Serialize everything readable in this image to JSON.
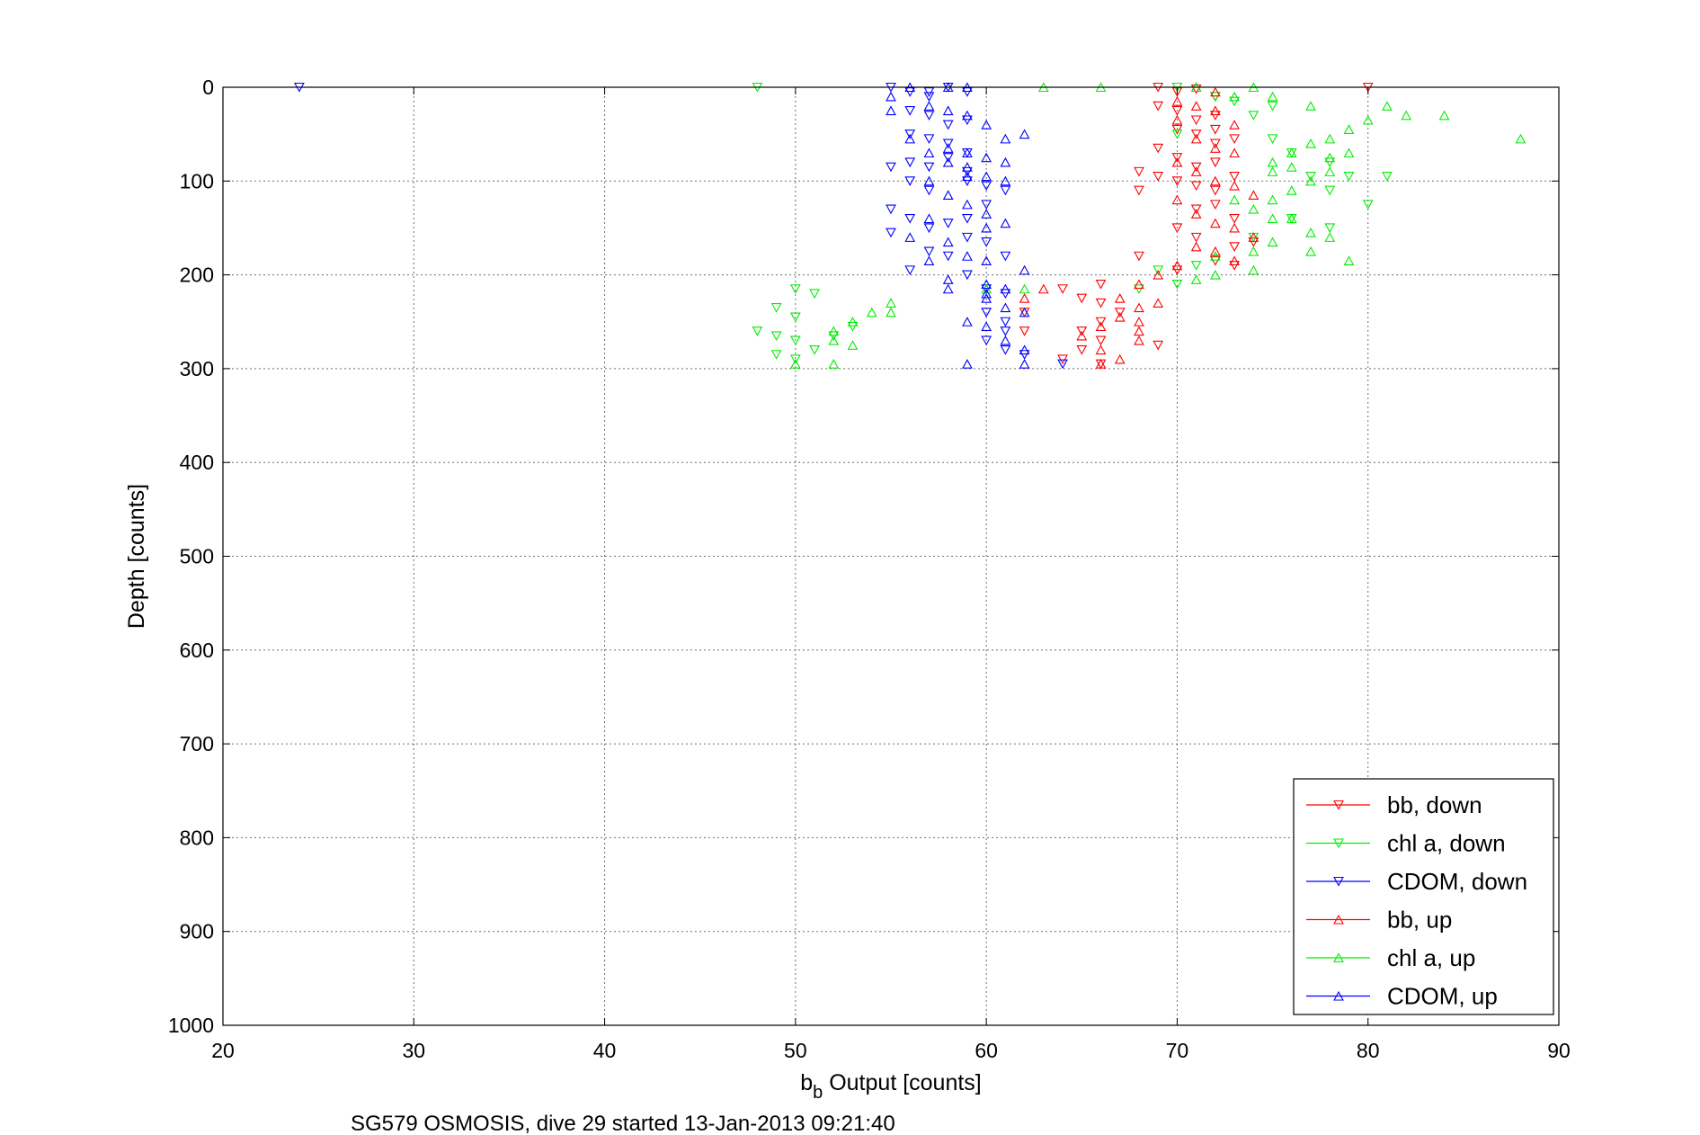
{
  "chart_data": {
    "type": "scatter",
    "xlabel_main": "b",
    "xlabel_sub": "b",
    "xlabel_rest": " Output [counts]",
    "ylabel": "Depth [counts]",
    "caption": "SG579 OSMOSIS, dive 29 started 13-Jan-2013 09:21:40",
    "xlim": [
      20,
      90
    ],
    "ylim": [
      0,
      1000
    ],
    "y_reversed": true,
    "grid": true,
    "legend_position": "bottom-right",
    "x_ticks": [
      "20",
      "30",
      "40",
      "50",
      "60",
      "70",
      "80",
      "90"
    ],
    "y_ticks": [
      "0",
      "100",
      "200",
      "300",
      "400",
      "500",
      "600",
      "700",
      "800",
      "900",
      "1000"
    ],
    "series": [
      {
        "name": "bb, down",
        "color": "#ff0000",
        "marker": "triangle-down",
        "points": [
          [
            69,
            0
          ],
          [
            70,
            5
          ],
          [
            71,
            2
          ],
          [
            72,
            10
          ],
          [
            69,
            20
          ],
          [
            70,
            25
          ],
          [
            71,
            35
          ],
          [
            72,
            30
          ],
          [
            70,
            45
          ],
          [
            71,
            50
          ],
          [
            72,
            60
          ],
          [
            73,
            55
          ],
          [
            69,
            65
          ],
          [
            70,
            75
          ],
          [
            71,
            85
          ],
          [
            72,
            80
          ],
          [
            68,
            90
          ],
          [
            69,
            95
          ],
          [
            70,
            100
          ],
          [
            71,
            105
          ],
          [
            72,
            110
          ],
          [
            73,
            95
          ],
          [
            68,
            110
          ],
          [
            71,
            130
          ],
          [
            72,
            125
          ],
          [
            73,
            140
          ],
          [
            70,
            150
          ],
          [
            71,
            160
          ],
          [
            73,
            170
          ],
          [
            74,
            165
          ],
          [
            68,
            180
          ],
          [
            70,
            195
          ],
          [
            72,
            185
          ],
          [
            73,
            190
          ],
          [
            66,
            210
          ],
          [
            64,
            215
          ],
          [
            65,
            225
          ],
          [
            66,
            230
          ],
          [
            67,
            240
          ],
          [
            66,
            250
          ],
          [
            65,
            260
          ],
          [
            66,
            270
          ],
          [
            65,
            280
          ],
          [
            64,
            290
          ],
          [
            66,
            295
          ],
          [
            62,
            240
          ],
          [
            62,
            260
          ],
          [
            69,
            275
          ],
          [
            80,
            0
          ],
          [
            72,
            45
          ]
        ]
      },
      {
        "name": "chl a, down",
        "color": "#00ee00",
        "marker": "triangle-down",
        "points": [
          [
            48,
            0
          ],
          [
            70,
            0
          ],
          [
            72,
            10
          ],
          [
            73,
            15
          ],
          [
            75,
            20
          ],
          [
            70,
            50
          ],
          [
            74,
            30
          ],
          [
            75,
            55
          ],
          [
            76,
            70
          ],
          [
            78,
            80
          ],
          [
            79,
            95
          ],
          [
            81,
            95
          ],
          [
            80,
            125
          ],
          [
            78,
            150
          ],
          [
            76,
            140
          ],
          [
            74,
            160
          ],
          [
            69,
            195
          ],
          [
            68,
            215
          ],
          [
            71,
            190
          ],
          [
            70,
            210
          ],
          [
            50,
            215
          ],
          [
            51,
            220
          ],
          [
            49,
            235
          ],
          [
            50,
            245
          ],
          [
            48,
            260
          ],
          [
            49,
            265
          ],
          [
            50,
            270
          ],
          [
            49,
            285
          ],
          [
            50,
            290
          ],
          [
            51,
            280
          ],
          [
            52,
            265
          ],
          [
            53,
            255
          ],
          [
            78,
            110
          ],
          [
            77,
            95
          ]
        ]
      },
      {
        "name": "CDOM, down",
        "color": "#0000ff",
        "marker": "triangle-down",
        "points": [
          [
            24,
            0
          ],
          [
            55,
            0
          ],
          [
            56,
            5
          ],
          [
            57,
            10
          ],
          [
            58,
            0
          ],
          [
            59,
            5
          ],
          [
            56,
            25
          ],
          [
            57,
            30
          ],
          [
            58,
            40
          ],
          [
            59,
            35
          ],
          [
            56,
            50
          ],
          [
            57,
            55
          ],
          [
            58,
            60
          ],
          [
            59,
            70
          ],
          [
            56,
            80
          ],
          [
            57,
            85
          ],
          [
            58,
            75
          ],
          [
            59,
            90
          ],
          [
            55,
            85
          ],
          [
            56,
            100
          ],
          [
            57,
            110
          ],
          [
            59,
            100
          ],
          [
            60,
            105
          ],
          [
            61,
            110
          ],
          [
            55,
            130
          ],
          [
            56,
            140
          ],
          [
            57,
            150
          ],
          [
            58,
            145
          ],
          [
            59,
            160
          ],
          [
            55,
            155
          ],
          [
            57,
            175
          ],
          [
            58,
            180
          ],
          [
            60,
            165
          ],
          [
            61,
            180
          ],
          [
            56,
            195
          ],
          [
            59,
            200
          ],
          [
            60,
            215
          ],
          [
            61,
            220
          ],
          [
            60,
            240
          ],
          [
            61,
            250
          ],
          [
            60,
            270
          ],
          [
            61,
            280
          ],
          [
            62,
            285
          ],
          [
            64,
            295
          ],
          [
            61,
            260
          ],
          [
            59,
            140
          ],
          [
            57,
            5
          ],
          [
            60,
            125
          ]
        ]
      },
      {
        "name": "bb, up",
        "color": "#ff0000",
        "marker": "triangle-up",
        "points": [
          [
            71,
            0
          ],
          [
            72,
            5
          ],
          [
            70,
            15
          ],
          [
            71,
            20
          ],
          [
            72,
            25
          ],
          [
            70,
            35
          ],
          [
            73,
            40
          ],
          [
            71,
            55
          ],
          [
            72,
            65
          ],
          [
            73,
            70
          ],
          [
            70,
            80
          ],
          [
            71,
            90
          ],
          [
            72,
            100
          ],
          [
            73,
            105
          ],
          [
            74,
            115
          ],
          [
            70,
            120
          ],
          [
            71,
            135
          ],
          [
            72,
            145
          ],
          [
            73,
            150
          ],
          [
            74,
            160
          ],
          [
            71,
            170
          ],
          [
            72,
            175
          ],
          [
            73,
            185
          ],
          [
            70,
            190
          ],
          [
            69,
            200
          ],
          [
            68,
            210
          ],
          [
            67,
            225
          ],
          [
            68,
            235
          ],
          [
            67,
            245
          ],
          [
            66,
            255
          ],
          [
            68,
            260
          ],
          [
            68,
            270
          ],
          [
            67,
            290
          ],
          [
            66,
            295
          ],
          [
            65,
            265
          ],
          [
            63,
            215
          ],
          [
            62,
            225
          ],
          [
            69,
            230
          ],
          [
            68,
            250
          ],
          [
            66,
            280
          ]
        ]
      },
      {
        "name": "chl a, up",
        "color": "#00ee00",
        "marker": "triangle-up",
        "points": [
          [
            63,
            0
          ],
          [
            66,
            0
          ],
          [
            71,
            0
          ],
          [
            74,
            0
          ],
          [
            73,
            10
          ],
          [
            75,
            10
          ],
          [
            77,
            20
          ],
          [
            80,
            35
          ],
          [
            81,
            20
          ],
          [
            82,
            30
          ],
          [
            84,
            30
          ],
          [
            88,
            55
          ],
          [
            79,
            45
          ],
          [
            78,
            55
          ],
          [
            77,
            60
          ],
          [
            76,
            70
          ],
          [
            75,
            80
          ],
          [
            78,
            75
          ],
          [
            79,
            70
          ],
          [
            78,
            90
          ],
          [
            77,
            100
          ],
          [
            76,
            110
          ],
          [
            75,
            120
          ],
          [
            74,
            130
          ],
          [
            76,
            140
          ],
          [
            77,
            155
          ],
          [
            75,
            165
          ],
          [
            74,
            175
          ],
          [
            72,
            180
          ],
          [
            77,
            175
          ],
          [
            78,
            160
          ],
          [
            79,
            185
          ],
          [
            72,
            200
          ],
          [
            74,
            195
          ],
          [
            71,
            205
          ],
          [
            55,
            230
          ],
          [
            55,
            240
          ],
          [
            54,
            240
          ],
          [
            53,
            250
          ],
          [
            52,
            260
          ],
          [
            52,
            270
          ],
          [
            53,
            275
          ],
          [
            52,
            295
          ],
          [
            50,
            295
          ],
          [
            60,
            215
          ],
          [
            62,
            215
          ],
          [
            75,
            90
          ],
          [
            76,
            85
          ],
          [
            75,
            140
          ],
          [
            73,
            120
          ]
        ]
      },
      {
        "name": "CDOM, up",
        "color": "#0000ff",
        "marker": "triangle-up",
        "points": [
          [
            56,
            0
          ],
          [
            58,
            0
          ],
          [
            59,
            0
          ],
          [
            55,
            10
          ],
          [
            57,
            20
          ],
          [
            58,
            25
          ],
          [
            59,
            30
          ],
          [
            60,
            40
          ],
          [
            61,
            55
          ],
          [
            62,
            50
          ],
          [
            56,
            55
          ],
          [
            58,
            65
          ],
          [
            59,
            70
          ],
          [
            60,
            75
          ],
          [
            61,
            80
          ],
          [
            57,
            70
          ],
          [
            59,
            85
          ],
          [
            60,
            95
          ],
          [
            61,
            100
          ],
          [
            58,
            115
          ],
          [
            59,
            125
          ],
          [
            60,
            135
          ],
          [
            61,
            145
          ],
          [
            57,
            140
          ],
          [
            56,
            160
          ],
          [
            58,
            165
          ],
          [
            59,
            180
          ],
          [
            60,
            185
          ],
          [
            62,
            195
          ],
          [
            57,
            185
          ],
          [
            58,
            205
          ],
          [
            60,
            210
          ],
          [
            61,
            215
          ],
          [
            60,
            225
          ],
          [
            61,
            235
          ],
          [
            62,
            240
          ],
          [
            60,
            255
          ],
          [
            61,
            270
          ],
          [
            62,
            280
          ],
          [
            62,
            295
          ],
          [
            59,
            250
          ],
          [
            59,
            295
          ],
          [
            58,
            215
          ],
          [
            60,
            220
          ],
          [
            57,
            100
          ],
          [
            58,
            80
          ],
          [
            59,
            95
          ],
          [
            60,
            150
          ],
          [
            55,
            25
          ]
        ]
      }
    ]
  }
}
